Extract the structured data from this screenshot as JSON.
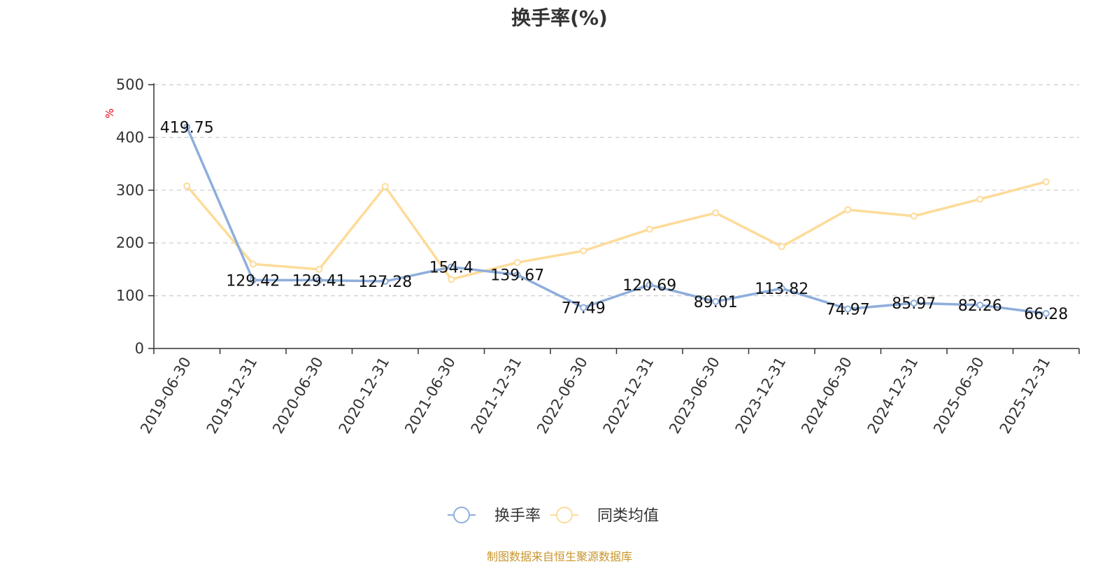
{
  "title": "换手率(%)",
  "source": "制图数据来自恒生聚源数据库",
  "colors": {
    "series1": "#8eaedb",
    "series2": "#fddb99",
    "grid": "#cccccc",
    "axis": "#333333"
  },
  "chart_data": {
    "type": "line",
    "title": "换手率(%)",
    "ylabel": "%",
    "ylim": [
      0,
      500
    ],
    "yticks": [
      0,
      100,
      200,
      300,
      400,
      500
    ],
    "grid": true,
    "legend_position": "bottom",
    "x": [
      "2019-06-30",
      "2019-12-31",
      "2020-06-30",
      "2020-12-31",
      "2021-06-30",
      "2021-12-31",
      "2022-06-30",
      "2022-12-31",
      "2023-06-30",
      "2023-12-31",
      "2024-06-30",
      "2024-12-31",
      "2025-06-30",
      "2025-12-31"
    ],
    "series": [
      {
        "name": "换手率",
        "color": "#8eaedb",
        "values": [
          419.75,
          129.42,
          129.41,
          127.28,
          154.4,
          139.67,
          77.49,
          120.69,
          89.01,
          113.82,
          74.97,
          85.97,
          82.26,
          66.28
        ],
        "labels": [
          "419.75",
          "129.42",
          "129.41",
          "127.28",
          "154.4",
          "139.67",
          "77.49",
          "120.69",
          "89.01",
          "113.82",
          "74.97",
          "85.97",
          "82.26",
          "66.28"
        ]
      },
      {
        "name": "同类均值",
        "color": "#fddb99",
        "values": [
          308,
          160,
          150,
          307,
          131,
          163,
          185,
          226,
          257,
          193,
          263,
          251,
          283,
          316
        ]
      }
    ]
  }
}
